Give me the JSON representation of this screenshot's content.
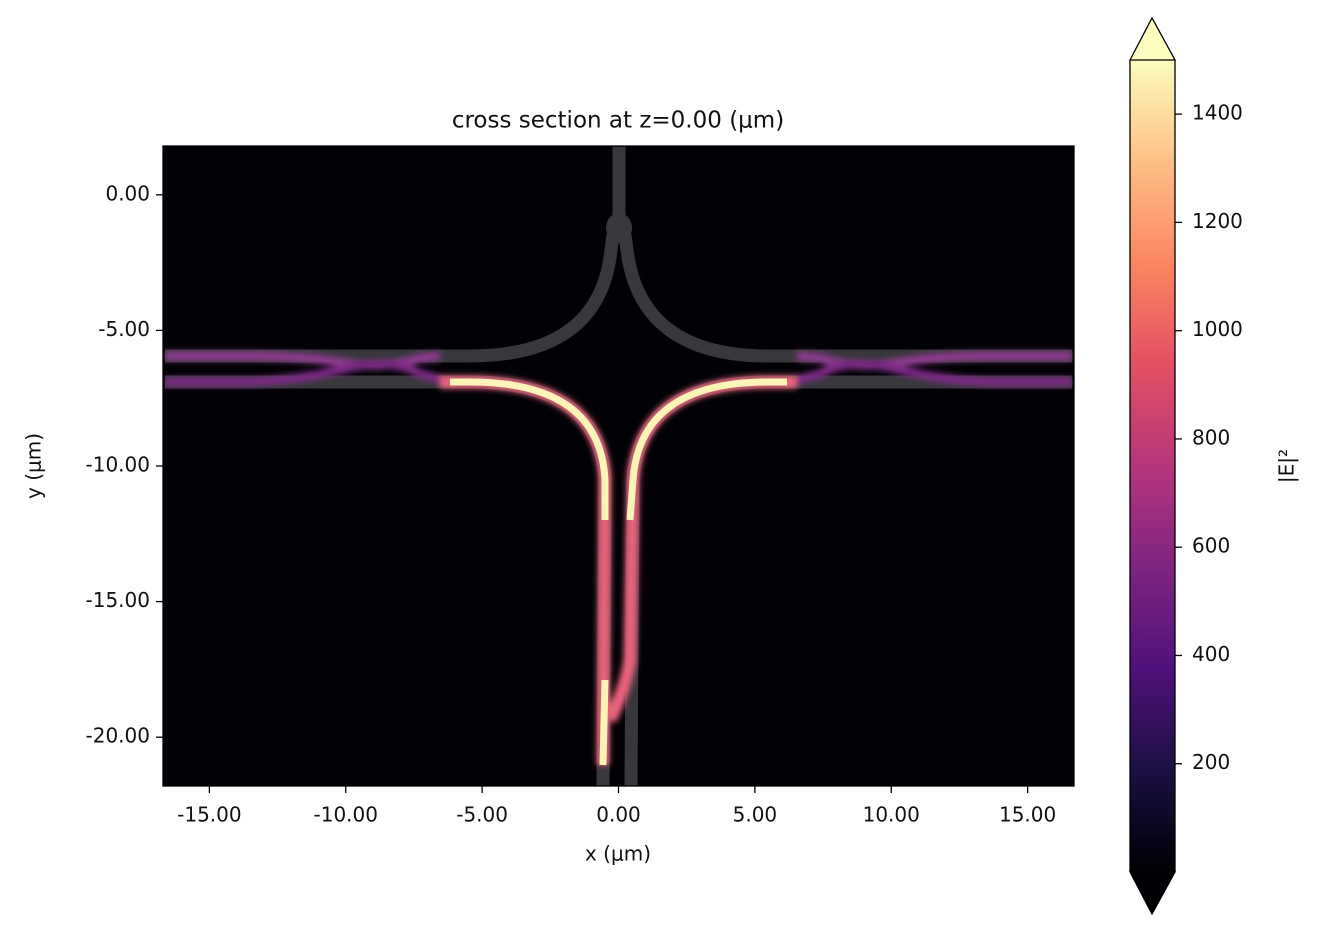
{
  "chart_data": {
    "type": "heatmap",
    "title": "cross section at z=0.00 (μm)",
    "x_label": "x (μm)",
    "y_label": "y (μm)",
    "xlim": [
      -16.7,
      16.7
    ],
    "ylim": [
      -21.8,
      1.8
    ],
    "xticks": [
      {
        "value": -15,
        "label": "-15.00"
      },
      {
        "value": -10,
        "label": "-10.00"
      },
      {
        "value": -5,
        "label": "-5.00"
      },
      {
        "value": 0,
        "label": "0.00"
      },
      {
        "value": 5,
        "label": "5.00"
      },
      {
        "value": 10,
        "label": "10.00"
      },
      {
        "value": 15,
        "label": "15.00"
      }
    ],
    "yticks": [
      {
        "value": 0,
        "label": "0.00"
      },
      {
        "value": -5,
        "label": "-5.00"
      },
      {
        "value": -10,
        "label": "-10.00"
      },
      {
        "value": -15,
        "label": "-15.00"
      },
      {
        "value": -20,
        "label": "-20.00"
      }
    ],
    "colorbar": {
      "label": "|E|²",
      "lim": [
        0,
        1500
      ],
      "ticks": [
        200,
        400,
        600,
        800,
        1000,
        1200,
        1400
      ],
      "colormap": "magma",
      "extend": "both"
    }
  }
}
